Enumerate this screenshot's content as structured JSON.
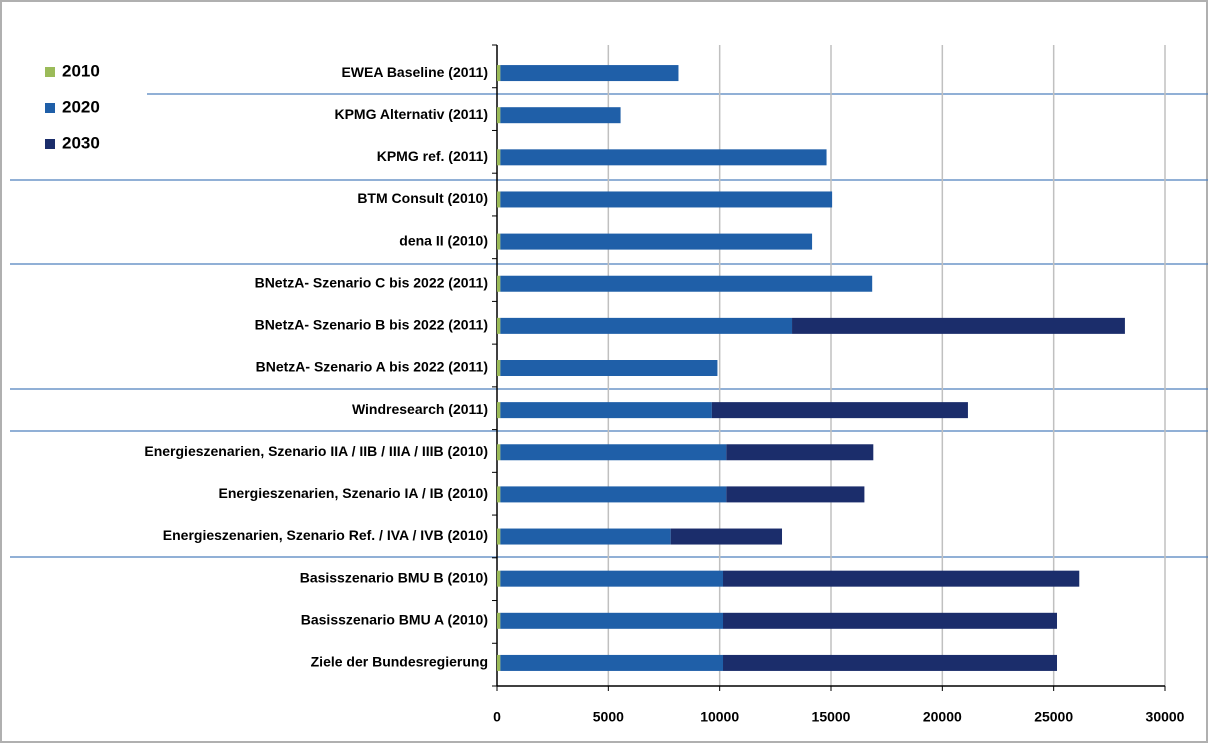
{
  "chart_data": {
    "type": "stacked_barh",
    "categories": [
      "EWEA Baseline (2011)",
      "KPMG Alternativ (2011)",
      "KPMG ref. (2011)",
      "BTM Consult (2010)",
      "dena II (2010)",
      "BNetzA- Szenario C bis 2022 (2011)",
      "BNetzA- Szenario B bis 2022 (2011)",
      "BNetzA- Szenario A bis 2022 (2011)",
      "Windresearch (2011)",
      "Energieszenarien, Szenario IIA / IIB / IIIA / IIIB (2010)",
      "Energieszenarien, Szenario IA / IB (2010)",
      "Energieszenarien, Szenario Ref. / IVA / IVB (2010)",
      "Basisszenario BMU B (2010)",
      "Basisszenario BMU A (2010)",
      "Ziele der Bundesregierung"
    ],
    "series": [
      {
        "name": "2010",
        "color": "#9bbb59",
        "values": [
          150,
          150,
          150,
          150,
          150,
          150,
          150,
          150,
          150,
          150,
          150,
          150,
          150,
          150,
          150
        ]
      },
      {
        "name": "2020",
        "color": "#1f5fa8",
        "values": [
          8000,
          5400,
          14650,
          14900,
          14000,
          16700,
          13100,
          9750,
          9500,
          10150,
          10150,
          7650,
          10000,
          10000,
          10000
        ]
      },
      {
        "name": "2030",
        "color": "#1b2d6b",
        "values": [
          0,
          0,
          0,
          0,
          0,
          0,
          14950,
          0,
          11500,
          6600,
          6200,
          5000,
          16000,
          15000,
          15000
        ]
      }
    ],
    "xlim": [
      0,
      30000
    ],
    "xticks": [
      0,
      5000,
      10000,
      15000,
      20000,
      25000,
      30000
    ],
    "grid": true,
    "legend": "upper left"
  }
}
